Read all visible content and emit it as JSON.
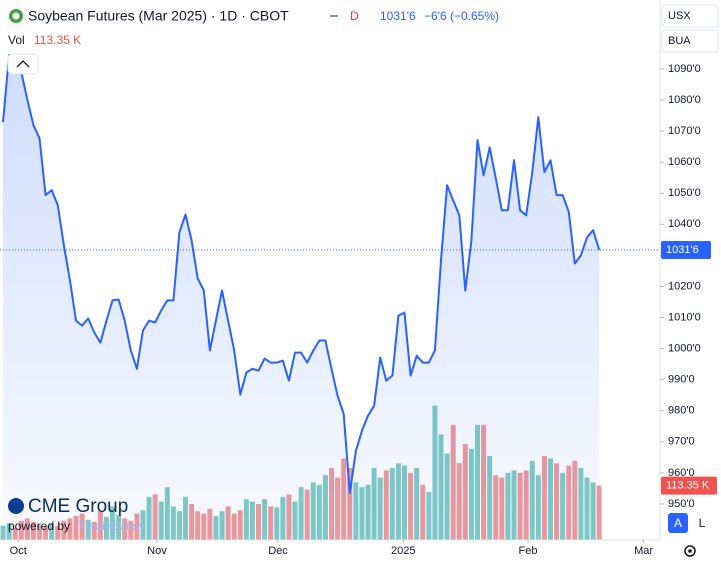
{
  "chart_data": {
    "type": "line",
    "title": "Soybean Futures (Mar 2025) · 1D · CBOT",
    "interval_badge": "D",
    "header_price": "1031'6",
    "header_change": "−6'6 (−0.65%)",
    "currency": "USX",
    "unit": "BUA",
    "logo": "CME Group",
    "powered_by": "powered by",
    "powered_brand": "TradingView",
    "buttons": [
      "A",
      "L"
    ],
    "color": "#2962ff",
    "grid": false,
    "xlim": [
      -0.5,
      108
    ],
    "xticks": [
      {
        "value": 2.5,
        "label": "Oct"
      },
      {
        "value": 25.3,
        "label": "Nov"
      },
      {
        "value": 45.2,
        "label": "Dec"
      },
      {
        "value": 65.8,
        "label": "2025"
      },
      {
        "value": 86.3,
        "label": "Feb"
      },
      {
        "value": 105.3,
        "label": "Mar"
      }
    ],
    "ylim": [
      938.4,
      1112.2
    ],
    "yticks": [
      {
        "value": 950,
        "label": "950'0"
      },
      {
        "value": 960,
        "label": "960'0"
      },
      {
        "value": 970,
        "label": "970'0"
      },
      {
        "value": 980,
        "label": "980'0"
      },
      {
        "value": 990,
        "label": "990'0"
      },
      {
        "value": 1000,
        "label": "1000'0"
      },
      {
        "value": 1010,
        "label": "1010'0"
      },
      {
        "value": 1020,
        "label": "1020'0"
      },
      {
        "value": 1030,
        "label": "1030'0"
      },
      {
        "value": 1040,
        "label": "1040'0"
      },
      {
        "value": 1050,
        "label": "1050'0"
      },
      {
        "value": 1060,
        "label": "1060'0"
      },
      {
        "value": 1070,
        "label": "1070'0"
      },
      {
        "value": 1080,
        "label": "1080'0"
      },
      {
        "value": 1090,
        "label": "1090'0"
      }
    ],
    "last_price": {
      "value": 1031.75,
      "label": "1031'6"
    },
    "values": [
      1072.9,
      1094.5,
      1090.3,
      1089.0,
      1080.0,
      1071.9,
      1067.7,
      1049.4,
      1051.0,
      1046.1,
      1033.2,
      1021.9,
      1009.0,
      1007.4,
      1009.7,
      1005.2,
      1001.9,
      1009.0,
      1015.5,
      1015.8,
      1009.0,
      999.4,
      993.5,
      1005.8,
      1009.0,
      1008.4,
      1012.3,
      1015.5,
      1015.5,
      1037.4,
      1043.2,
      1034.8,
      1022.6,
      1018.7,
      999.4,
      1009.0,
      1018.7,
      1009.0,
      999.4,
      985.2,
      992.3,
      993.5,
      992.9,
      996.8,
      995.5,
      995.5,
      996.1,
      989.7,
      998.7,
      998.7,
      995.5,
      999.4,
      1002.6,
      1002.6,
      993.5,
      984.8,
      979.0,
      953.5,
      967.1,
      973.5,
      978.4,
      981.6,
      997.1,
      989.7,
      991.3,
      1010.6,
      1011.6,
      991.3,
      997.7,
      995.5,
      995.5,
      999.4,
      1028.4,
      1052.6,
      1047.7,
      1042.9,
      1018.7,
      1034.8,
      1067.1,
      1055.8,
      1064.8,
      1054.8,
      1044.5,
      1044.5,
      1060.6,
      1044.5,
      1042.9,
      1056.8,
      1074.5,
      1056.8,
      1060.6,
      1049.4,
      1049.4,
      1043.9,
      1027.4,
      1030.0,
      1035.8,
      1038.1,
      1031.75
    ],
    "volume": {
      "name": "Vol",
      "last_label": "113.35 K",
      "ylim": [
        0,
        300
      ],
      "up_color": "#80cbc4",
      "down_color": "#ef9a9a",
      "values": [
        30,
        35,
        25,
        40,
        45,
        38,
        30,
        28,
        35,
        30,
        40,
        45,
        50,
        55,
        42,
        38,
        60,
        48,
        70,
        52,
        45,
        40,
        55,
        62,
        90,
        95,
        80,
        110,
        70,
        60,
        90,
        75,
        60,
        55,
        65,
        50,
        60,
        70,
        55,
        62,
        85,
        80,
        75,
        85,
        70,
        68,
        90,
        95,
        80,
        110,
        105,
        120,
        115,
        135,
        150,
        130,
        170,
        150,
        120,
        110,
        115,
        150,
        130,
        145,
        150,
        160,
        155,
        140,
        150,
        115,
        100,
        280,
        220,
        180,
        240,
        160,
        200,
        190,
        240,
        240,
        175,
        135,
        130,
        140,
        145,
        140,
        145,
        165,
        135,
        175,
        170,
        160,
        140,
        155,
        165,
        150,
        130,
        120,
        113.35
      ]
    }
  }
}
